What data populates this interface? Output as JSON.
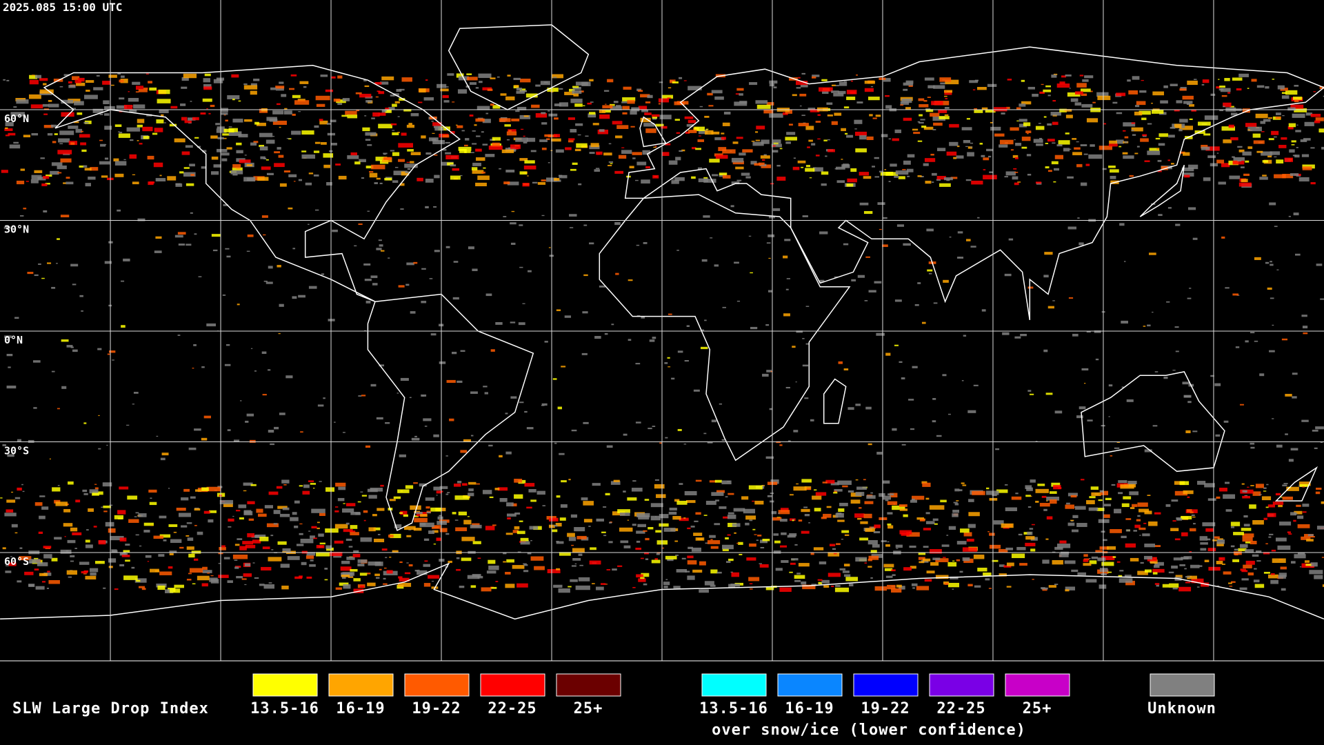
{
  "header": {
    "timestamp": "2025.085 15:00 UTC"
  },
  "map": {
    "latitude_labels": [
      "60°N",
      "30°N",
      "0°N",
      "30°S",
      "60°S"
    ]
  },
  "legend": {
    "title": "SLW Large Drop Index",
    "items": [
      {
        "label": "13.5-16",
        "color": "#ffff00"
      },
      {
        "label": "16-19",
        "color": "#ffa500"
      },
      {
        "label": "19-22",
        "color": "#ff5a00"
      },
      {
        "label": "22-25",
        "color": "#ff0000"
      },
      {
        "label": "25+",
        "color": "#6b0000"
      }
    ],
    "snow_items": [
      {
        "label": "13.5-16",
        "color": "#00ffff"
      },
      {
        "label": "16-19",
        "color": "#0a86ff"
      },
      {
        "label": "19-22",
        "color": "#0000ff"
      },
      {
        "label": "22-25",
        "color": "#7a00e6"
      },
      {
        "label": "25+",
        "color": "#c800c8"
      }
    ],
    "snow_caption": "over snow/ice (lower confidence)",
    "unknown": {
      "label": "Unknown",
      "color": "#808080"
    }
  }
}
